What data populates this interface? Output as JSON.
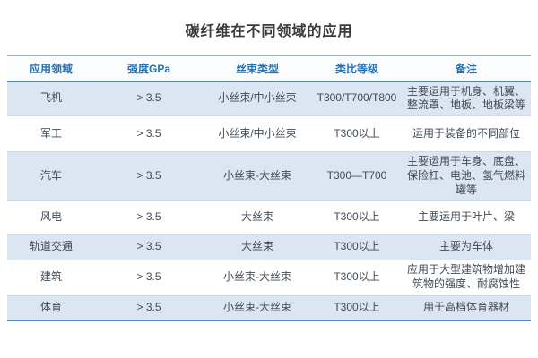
{
  "title": "碳纤维在不同领域的应用",
  "colors": {
    "accent_blue": "#4f81bd",
    "header_text_blue": "#2272b8",
    "stripe_row_bg": "#dce6f2",
    "top_rule": "#9fb0c6",
    "row_separator": "#ccd9eb",
    "body_text": "#424a52",
    "title_text": "#3b3b3b",
    "background": "#ffffff"
  },
  "table": {
    "headers": [
      "应用领域",
      "强度GPa",
      "丝束类型",
      "类比等级",
      "备注"
    ],
    "rows": [
      {
        "field": "飞机",
        "strength": "> 3.5",
        "tow": "小丝束/中小丝束",
        "grade": "T300/T700/T800",
        "note": "主要运用于机身、机翼、整流罩、地板、地板梁等"
      },
      {
        "field": "军工",
        "strength": "> 3.5",
        "tow": "小丝束/中小丝束",
        "grade": "T300以上",
        "note": "运用于装备的不同部位"
      },
      {
        "field": "汽车",
        "strength": "> 3.5",
        "tow": "小丝束-大丝束",
        "grade": "T300—T700",
        "note": "主要运用于车身、底盘、保险杠、电池、氢气燃料罐等"
      },
      {
        "field": "风电",
        "strength": "> 3.5",
        "tow": "大丝束",
        "grade": "T300以上",
        "note": "主要运用于叶片、梁"
      },
      {
        "field": "轨道交通",
        "strength": "> 3.5",
        "tow": "大丝束",
        "grade": "T300以上",
        "note": "主要为车体"
      },
      {
        "field": "建筑",
        "strength": "> 3.5",
        "tow": "小丝束-大丝束",
        "grade": "T300以上",
        "note": "应用于大型建筑物增加建筑物的强度、耐腐蚀性"
      },
      {
        "field": "体育",
        "strength": "> 3.5",
        "tow": "小丝束-大丝束",
        "grade": "T300以上",
        "note": "用于高档体育器材"
      }
    ]
  },
  "chart_data": {
    "type": "table",
    "title": "碳纤维在不同领域的应用",
    "columns": [
      "应用领域",
      "强度GPa",
      "丝束类型",
      "类比等级",
      "备注"
    ],
    "rows": [
      [
        "飞机",
        "> 3.5",
        "小丝束/中小丝束",
        "T300/T700/T800",
        "主要运用于机身、机翼、整流罩、地板、地板梁等"
      ],
      [
        "军工",
        "> 3.5",
        "小丝束/中小丝束",
        "T300以上",
        "运用于装备的不同部位"
      ],
      [
        "汽车",
        "> 3.5",
        "小丝束-大丝束",
        "T300—T700",
        "主要运用于车身、底盘、保险杠、电池、氢气燃料罐等"
      ],
      [
        "风电",
        "> 3.5",
        "大丝束",
        "T300以上",
        "主要运用于叶片、梁"
      ],
      [
        "轨道交通",
        "> 3.5",
        "大丝束",
        "T300以上",
        "主要为车体"
      ],
      [
        "建筑",
        "> 3.5",
        "小丝束-大丝束",
        "T300以上",
        "应用于大型建筑物增加建筑物的强度、耐腐蚀性"
      ],
      [
        "体育",
        "> 3.5",
        "小丝束-大丝束",
        "T300以上",
        "用于高档体育器材"
      ]
    ],
    "layout": "striped rows (light blue #dce6f2 / white), blue header text, accent rules above header / below header / at table bottom"
  }
}
